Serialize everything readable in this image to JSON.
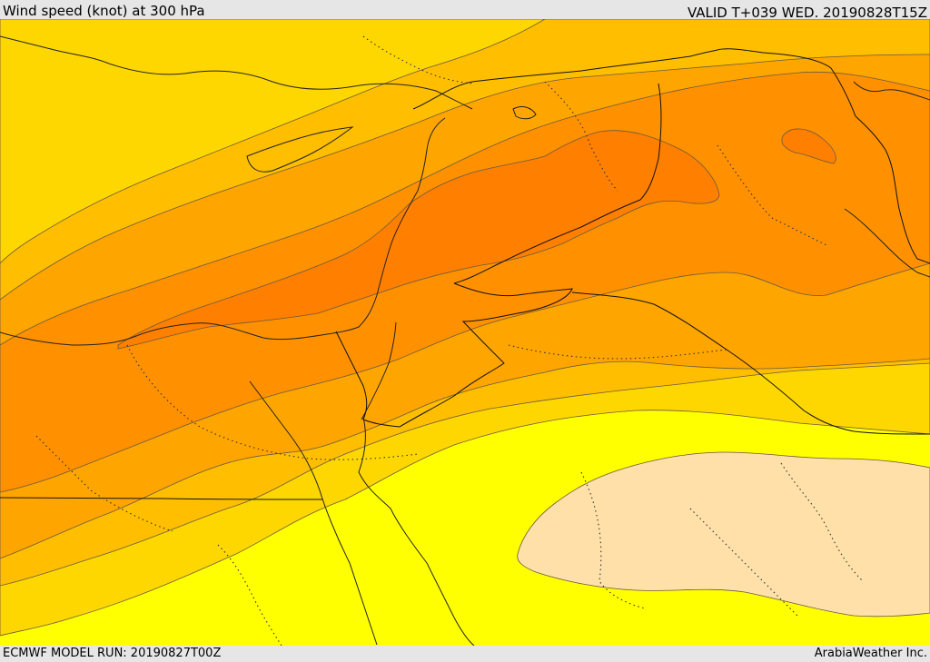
{
  "header": {
    "title": "Wind speed (knot) at 300 hPa",
    "valid": "VALID T+039 WED. 20190828T15Z"
  },
  "footer": {
    "model_run": "ECMWF MODEL RUN: 20190827T00Z",
    "credit": "ArabiaWeather Inc."
  },
  "colors": {
    "lightest": "#fee0a8",
    "yellow": "#ffff00",
    "gold": "#ffd700",
    "amber": "#ffbf00",
    "orange1": "#ffa500",
    "orange2": "#ff8c00",
    "orange3": "#ff7f00"
  }
}
